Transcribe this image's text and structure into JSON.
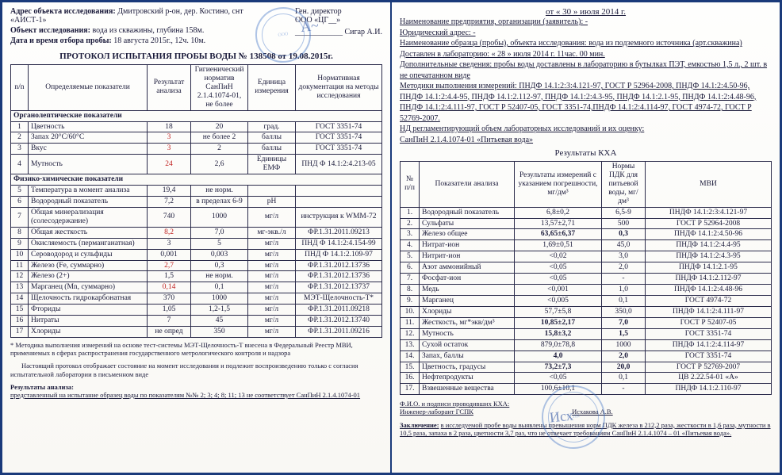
{
  "left": {
    "address_label": "Адрес объекта исследования:",
    "address": "Дмитровский р-он, дер. Костино, снт «АИСТ-1»",
    "object_label": "Объект исследования:",
    "object": "вода из скважины, глубина 158м.",
    "date_label": "Дата и время отбора пробы:",
    "date": "18 августа 2015г., 12ч. 10м.",
    "gendir": "Ген. директор",
    "ooo": "ООО «ЦГ__»",
    "sigar": "Сигар А.И.",
    "protocol_title": "ПРОТОКОЛ ИСПЫТАНИЯ ПРОБЫ ВОДЫ № 138508 от 19.08.2015г.",
    "headers": {
      "num": "n/n",
      "param": "Определяемые показатели",
      "result": "Результат анализа",
      "norm": "Гигиенический норматив СанПиН 2.1.4.1074-01, не более",
      "unit": "Единица измерения",
      "doc": "Нормативная документация на методы исследования"
    },
    "section1": "Органолептические показатели",
    "section2": "Физико-химические показатели",
    "rows1": [
      {
        "n": "1",
        "p": "Цветность",
        "r": "18",
        "norm": "20",
        "u": "град.",
        "d": "ГОСТ 3351-74"
      },
      {
        "n": "2",
        "p": "Запах 20°С/60°С",
        "r": "3",
        "rr": true,
        "norm": "не более 2",
        "u": "баллы",
        "d": "ГОСТ 3351-74"
      },
      {
        "n": "3",
        "p": "Вкус",
        "r": "3",
        "rr": true,
        "norm": "2",
        "u": "баллы",
        "d": "ГОСТ 3351-74"
      },
      {
        "n": "4",
        "p": "Мутность",
        "r": "24",
        "rr": true,
        "norm": "2,6",
        "u": "Единицы ЕМФ",
        "d": "ПНД Ф 14.1:2:4.213-05"
      }
    ],
    "rows2": [
      {
        "n": "5",
        "p": "Температура в момент анализа",
        "r": "19,4",
        "norm": "не норм.",
        "u": "",
        "d": ""
      },
      {
        "n": "6",
        "p": "Водородный показатель",
        "r": "7,2",
        "norm": "в пределах 6-9",
        "u": "pH",
        "d": ""
      },
      {
        "n": "7",
        "p": "Общая минерализация (солесодержание)",
        "r": "740",
        "norm": "1000",
        "u": "мг/л",
        "d": "инструкция к WMM-72"
      },
      {
        "n": "8",
        "p": "Общая жесткость",
        "r": "8,2",
        "rr": true,
        "norm": "7,0",
        "u": "мг-экв./л",
        "d": "ФР.1.31.2011.09213"
      },
      {
        "n": "9",
        "p": "Окисляемость (перманганатная)",
        "r": "3",
        "norm": "5",
        "u": "мг/л",
        "d": "ПНД Ф 14.1:2:4.154-99"
      },
      {
        "n": "10",
        "p": "Сероводород и сульфиды",
        "r": "0,001",
        "norm": "0,003",
        "u": "мг/л",
        "d": "ПНД Ф 14.1:2.109-97"
      },
      {
        "n": "11",
        "p": "Железо (Fe, суммарно)",
        "r": "2,7",
        "rr": true,
        "norm": "0,3",
        "u": "мг/л",
        "d": "ФР.1.31.2012.13736"
      },
      {
        "n": "12",
        "p": "Железо (2+)",
        "r": "1,5",
        "norm": "не норм.",
        "u": "мг/л",
        "d": "ФР.1.31.2012.13736"
      },
      {
        "n": "13",
        "p": "Марганец (Mn, суммарно)",
        "r": "0,14",
        "rr": true,
        "norm": "0,1",
        "u": "мг/л",
        "d": "ФР.1.31.2012.13737"
      },
      {
        "n": "14",
        "p": "Щелочность гидрокарбонатная",
        "r": "370",
        "norm": "1000",
        "u": "мг/л",
        "d": "МЭТ-Щелочность-Т*"
      },
      {
        "n": "15",
        "p": "Фториды",
        "r": "1,05",
        "norm": "1,2-1,5",
        "u": "мг/л",
        "d": "ФР.1.31.2011.09218"
      },
      {
        "n": "16",
        "p": "Нитраты",
        "r": "7",
        "norm": "45",
        "u": "мг/л",
        "d": "ФР.1.31.2012.13740"
      },
      {
        "n": "17",
        "p": "Хлориды",
        "r": "не опред",
        "norm": "350",
        "u": "мг/л",
        "d": "ФР.1.31.2011.09216"
      }
    ],
    "note1": "* Методика выполнения измерений на основе тест-системы МЭТ-Щелочность-Т внесена в Федеральный Реестр МВИ, применяемых в сферах распространения государственного метрологического контроля и надзора",
    "note2": "Настоящий протокол отображает состояние на момент исследования и подлежит воспроизведению только с согласия испытательной лаборатории в письменном виде",
    "note3label": "Результаты анализа:",
    "note3": "представленный на испытание образец воды по показателям №№ 2; 3; 4; 8; 11; 13 не соответствует СанПиН 2.1.4.1074-01"
  },
  "right": {
    "date": "от « 30 »   июля   2014 г.",
    "h1": "Наименование предприятия, организации (заявитель): -",
    "h2": "Юридический адрес: -",
    "h3": "Наименование образца (пробы), объекта исследования: вода из подземного источника (арт.скважина)",
    "h4": "Доставлен в лабораторию: « 28 »   июля   2014 г.          11час. 00 мин.",
    "h5": "Дополнительные сведения: пробы воды доставлены в лабораторию в бутылках ПЭТ, емкостью 1,5 л., 2 шт. в не опечатанном виде",
    "h6": "Методики выполнения измерений: ПНДФ 14.1:2:3:4.121-97, ГОСТ Р 52964-2008, ПНДФ 14.1:2:4.50-96, ПНДФ 14.1:2:4.4-95, ПНДФ 14.1:2.112-97, ПНДФ 14.1:2:4.3-95, ПНДФ 14.1:2.1-95, ПНДФ 14.1:2:4.48-96, ПНДФ 14.1:2:4.111-97, ГОСТ Р 52407-05, ГОСТ 3351-74,ПНДФ 14.1:2:4.114-97, ГОСТ 4974-72, ГОСТ Р 52769-2007.",
    "h7": "НД регламентирующий объем лабораторных исследований и их оценку:",
    "h7a": "СанПиН 2.1.4.1074-01 «Питьевая вода»",
    "title": "Результаты КХА",
    "headers": {
      "num": "№ п/п",
      "param": "Показатели анализа",
      "result": "Результаты измерений с указанием погрешности, мг/дм³",
      "norm": "Нормы ПДК для питьевой воды, мг/дм³",
      "mvi": "МВИ"
    },
    "rows": [
      {
        "n": "1.",
        "p": "Водородный показатель",
        "r": "6,8±0,2",
        "norm": "6,5-9",
        "m": "ПНДФ 14.1:2:3:4.121-97"
      },
      {
        "n": "2.",
        "p": "Сульфаты",
        "r": "13,57±2,71",
        "norm": "500",
        "m": "ГОСТ Р 52964-2008"
      },
      {
        "n": "3.",
        "p": "Железо общее",
        "r": "63,65±6,37",
        "b": true,
        "norm": "0,3",
        "nb": true,
        "m": "ПНДФ 14.1:2:4.50-96"
      },
      {
        "n": "4.",
        "p": "Нитрат-ион",
        "r": "1,69±0,51",
        "norm": "45,0",
        "m": "ПНДФ 14.1:2:4.4-95"
      },
      {
        "n": "5.",
        "p": "Нитрит-ион",
        "r": "<0,02",
        "norm": "3,0",
        "m": "ПНДФ 14.1:2:4.3-95"
      },
      {
        "n": "6.",
        "p": "Азот аммонийный",
        "r": "<0,05",
        "norm": "2,0",
        "m": "ПНДФ 14.1:2.1-95"
      },
      {
        "n": "7.",
        "p": "Фосфат-ион",
        "r": "<0,05",
        "norm": "-",
        "m": "ПНДФ 14.1:2.112-97"
      },
      {
        "n": "8.",
        "p": "Медь",
        "r": "<0,001",
        "norm": "1,0",
        "m": "ПНДФ 14.1:2:4.48-96"
      },
      {
        "n": "9.",
        "p": "Марганец",
        "r": "<0,005",
        "norm": "0,1",
        "m": "ГОСТ 4974-72"
      },
      {
        "n": "10.",
        "p": "Хлориды",
        "r": "57,7±5,8",
        "norm": "350,0",
        "m": "ПНДФ 14.1:2:4.111-97"
      },
      {
        "n": "11.",
        "p": "Жесткость, мг*экв/дм³",
        "r": "10,85±2,17",
        "b": true,
        "norm": "7,0",
        "nb": true,
        "m": "ГОСТ Р 52407-05"
      },
      {
        "n": "12.",
        "p": "Мутность",
        "r": "15,8±3,2",
        "b": true,
        "norm": "1,5",
        "nb": true,
        "m": "ГОСТ 3351-74"
      },
      {
        "n": "13.",
        "p": "Сухой остаток",
        "r": "879,0±78,8",
        "norm": "1000",
        "m": "ПНДФ 14.1:2:4.114-97"
      },
      {
        "n": "14.",
        "p": "Запах, баллы",
        "r": "4,0",
        "b": true,
        "norm": "2,0",
        "nb": true,
        "m": "ГОСТ 3351-74"
      },
      {
        "n": "15.",
        "p": "Цветность, градусы",
        "r": "73,2±7,3",
        "b": true,
        "norm": "20,0",
        "nb": true,
        "m": "ГОСТ Р 52769-2007"
      },
      {
        "n": "16.",
        "p": "Нефтепродукты",
        "r": "<0,05",
        "norm": "0,1",
        "m": "ЦВ 2.22.54-01 «А»"
      },
      {
        "n": "17.",
        "p": "Взвешенные вещества",
        "r": "100,6±10,1",
        "norm": "-",
        "m": "ПНДФ 14.1:2.110-97"
      }
    ],
    "fio": "Ф.И.О. и подписи проводивших КХА:",
    "engineer": "Инженер-лаборант ГСПК",
    "engname": "Исхакова  А.В.",
    "concl_label": "Заключение:",
    "concl": "в исследуемой пробе воды выявлены превышения норм ПДК железа в 212,2 раза, жесткости в 1,6 раза, мутности в 10,5 раза, запаха в 2 раза, цветности 3,7 раз, что не отвечает требованиям СанПиН 2.1.4.1074 – 01 «Питьевая вода»."
  }
}
